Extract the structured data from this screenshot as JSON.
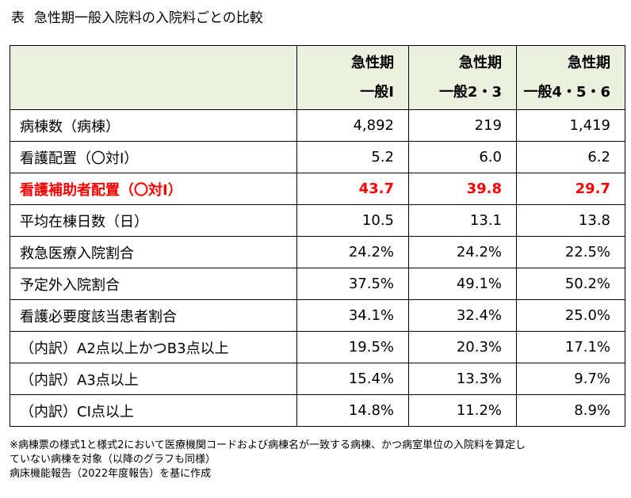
{
  "title": {
    "label": "表",
    "text": "急性期一般入院料の入院料ごとの比較"
  },
  "table": {
    "columns": [
      {
        "line1": "急性期",
        "line2": "一般Ⅰ"
      },
      {
        "line1": "急性期",
        "line2": "一般2・3"
      },
      {
        "line1": "急性期",
        "line2": "一般4・5・6"
      }
    ],
    "rows": [
      {
        "label": "病棟数（病棟）",
        "values": [
          "4,892",
          "219",
          "1,419"
        ]
      },
      {
        "label": "看護配置（〇対Ⅰ）",
        "values": [
          "5.2",
          "6.0",
          "6.2"
        ]
      },
      {
        "label": "看護補助者配置（〇対Ⅰ）",
        "values": [
          "43.7",
          "39.8",
          "29.7"
        ]
      },
      {
        "label": "平均在棟日数（日）",
        "values": [
          "10.5",
          "13.1",
          "13.8"
        ]
      },
      {
        "label": "救急医療入院割合",
        "values": [
          "24.2%",
          "24.2%",
          "22.5%"
        ]
      },
      {
        "label": "予定外入院割合",
        "values": [
          "37.5%",
          "49.1%",
          "50.2%"
        ]
      },
      {
        "label": "看護必要度該当患者割合",
        "values": [
          "34.1%",
          "32.4%",
          "25.0%"
        ]
      },
      {
        "label": "（内訳）A2点以上かつB3点以上",
        "values": [
          "19.5%",
          "20.3%",
          "17.1%"
        ]
      },
      {
        "label": "（内訳）A3点以上",
        "values": [
          "15.4%",
          "13.3%",
          "9.7%"
        ]
      },
      {
        "label": "（内訳）CⅠ点以上",
        "values": [
          "14.8%",
          "11.2%",
          "8.9%"
        ]
      }
    ]
  },
  "notes": {
    "line1": "※病棟票の様式1と様式2において医療機関コードおよび病棟名が一致する病棟、かつ病室単位の入院料を算定し",
    "line2": "ていない病棟を対象（以降のグラフも同様）",
    "line3": "病床機能報告（2022年度報告）を基に作成"
  },
  "colors": {
    "header_bg": "#ebf1de",
    "highlight": "#ff0000"
  }
}
